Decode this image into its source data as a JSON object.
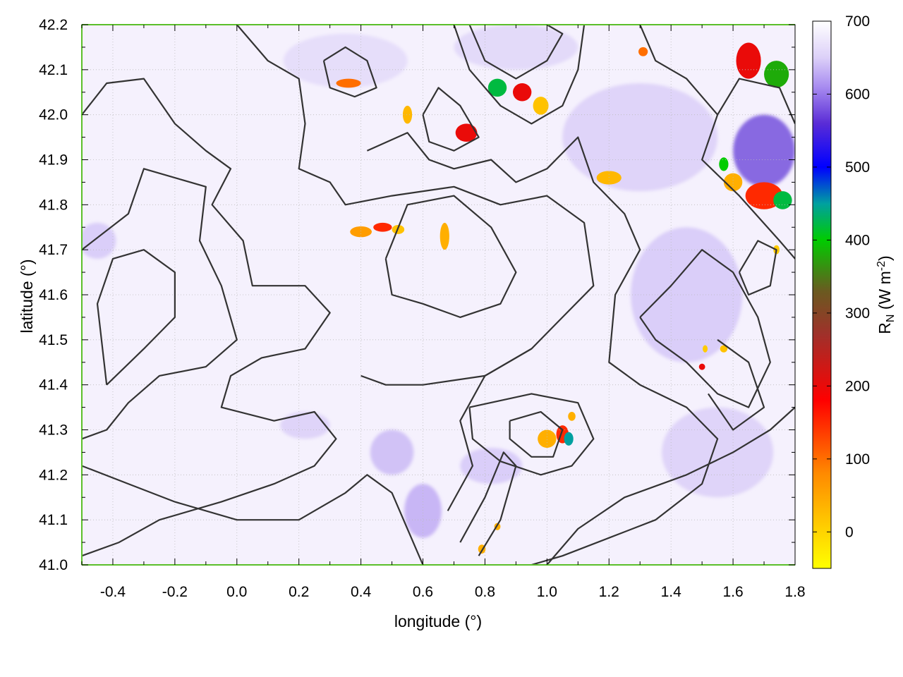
{
  "chart_data": {
    "type": "heatmap",
    "title": "",
    "xlabel": "longitude (°)",
    "ylabel": "latitude (°)",
    "xlim": [
      -0.5,
      1.8
    ],
    "ylim": [
      41.0,
      42.2
    ],
    "xticks": [
      -0.4,
      -0.2,
      0.0,
      0.2,
      0.4,
      0.6,
      0.8,
      1.0,
      1.2,
      1.4,
      1.6,
      1.8
    ],
    "xtick_labels": [
      "-0.4",
      "-0.2",
      "0.0",
      "0.2",
      "0.4",
      "0.6",
      "0.8",
      "1.0",
      "1.2",
      "1.4",
      "1.6",
      "1.8"
    ],
    "yticks": [
      41.0,
      41.1,
      41.2,
      41.3,
      41.4,
      41.5,
      41.6,
      41.7,
      41.8,
      41.9,
      42.0,
      42.1,
      42.2
    ],
    "ytick_labels": [
      "41.0",
      "41.1",
      "41.2",
      "41.3",
      "41.4",
      "41.5",
      "41.6",
      "41.7",
      "41.8",
      "41.9",
      "42.0",
      "42.1",
      "42.2"
    ],
    "grid": true,
    "colorbar": {
      "label_main": "R",
      "label_sub": "N",
      "label_unit_pre": " (W m",
      "label_unit_sup": "-2",
      "label_unit_post": ")",
      "range": [
        -50,
        700
      ],
      "ticks": [
        0,
        100,
        200,
        300,
        400,
        500,
        600,
        700
      ],
      "tick_labels": [
        "0",
        "100",
        "200",
        "300",
        "400",
        "500",
        "600",
        "700"
      ],
      "stops": [
        {
          "value": -50,
          "color": "#ffff00"
        },
        {
          "value": 0,
          "color": "#ffd400"
        },
        {
          "value": 80,
          "color": "#ff8a00"
        },
        {
          "value": 180,
          "color": "#ff0000"
        },
        {
          "value": 270,
          "color": "#a0302a"
        },
        {
          "value": 330,
          "color": "#6a5a20"
        },
        {
          "value": 400,
          "color": "#00cc00"
        },
        {
          "value": 450,
          "color": "#00a0a0"
        },
        {
          "value": 500,
          "color": "#0000ff"
        },
        {
          "value": 560,
          "color": "#5a2cd6"
        },
        {
          "value": 610,
          "color": "#a88cf0"
        },
        {
          "value": 650,
          "color": "#dcd0f8"
        },
        {
          "value": 700,
          "color": "#ffffff"
        }
      ]
    },
    "background_value": 685,
    "features": [
      {
        "lon": -0.45,
        "lat": 41.72,
        "rx": 0.06,
        "ry": 0.04,
        "value": 640
      },
      {
        "lon": 0.22,
        "lat": 41.31,
        "rx": 0.08,
        "ry": 0.03,
        "value": 645
      },
      {
        "lon": 0.5,
        "lat": 41.25,
        "rx": 0.07,
        "ry": 0.05,
        "value": 630
      },
      {
        "lon": 0.6,
        "lat": 41.12,
        "rx": 0.06,
        "ry": 0.06,
        "value": 620
      },
      {
        "lon": 0.82,
        "lat": 41.22,
        "rx": 0.1,
        "ry": 0.04,
        "value": 640
      },
      {
        "lon": 1.45,
        "lat": 41.6,
        "rx": 0.18,
        "ry": 0.15,
        "value": 640
      },
      {
        "lon": 1.3,
        "lat": 41.95,
        "rx": 0.25,
        "ry": 0.12,
        "value": 645
      },
      {
        "lon": 1.7,
        "lat": 41.92,
        "rx": 0.1,
        "ry": 0.08,
        "value": 560
      },
      {
        "lon": 1.55,
        "lat": 41.25,
        "rx": 0.18,
        "ry": 0.1,
        "value": 645
      },
      {
        "lon": 0.35,
        "lat": 42.12,
        "rx": 0.2,
        "ry": 0.06,
        "value": 655
      },
      {
        "lon": 0.9,
        "lat": 42.15,
        "rx": 0.2,
        "ry": 0.05,
        "value": 650
      },
      {
        "lon": 0.4,
        "lat": 41.74,
        "rx": 0.035,
        "ry": 0.012,
        "value": 60
      },
      {
        "lon": 0.47,
        "lat": 41.75,
        "rx": 0.03,
        "ry": 0.01,
        "value": 150
      },
      {
        "lon": 0.52,
        "lat": 41.745,
        "rx": 0.02,
        "ry": 0.01,
        "value": 20
      },
      {
        "lon": 0.67,
        "lat": 41.73,
        "rx": 0.015,
        "ry": 0.03,
        "value": 40
      },
      {
        "lon": 0.36,
        "lat": 42.07,
        "rx": 0.04,
        "ry": 0.01,
        "value": 100
      },
      {
        "lon": 0.74,
        "lat": 41.96,
        "rx": 0.035,
        "ry": 0.02,
        "value": 200
      },
      {
        "lon": 0.55,
        "lat": 42.0,
        "rx": 0.015,
        "ry": 0.02,
        "value": 30
      },
      {
        "lon": 0.84,
        "lat": 42.06,
        "rx": 0.03,
        "ry": 0.02,
        "value": 420
      },
      {
        "lon": 0.92,
        "lat": 42.05,
        "rx": 0.03,
        "ry": 0.02,
        "value": 200
      },
      {
        "lon": 0.98,
        "lat": 42.02,
        "rx": 0.025,
        "ry": 0.02,
        "value": 20
      },
      {
        "lon": 1.2,
        "lat": 41.86,
        "rx": 0.04,
        "ry": 0.015,
        "value": 30
      },
      {
        "lon": 1.31,
        "lat": 42.14,
        "rx": 0.015,
        "ry": 0.01,
        "value": 100
      },
      {
        "lon": 1.65,
        "lat": 42.12,
        "rx": 0.04,
        "ry": 0.04,
        "value": 200
      },
      {
        "lon": 1.74,
        "lat": 42.09,
        "rx": 0.04,
        "ry": 0.03,
        "value": 380
      },
      {
        "lon": 1.7,
        "lat": 41.82,
        "rx": 0.06,
        "ry": 0.03,
        "value": 150
      },
      {
        "lon": 1.6,
        "lat": 41.85,
        "rx": 0.03,
        "ry": 0.02,
        "value": 40
      },
      {
        "lon": 1.76,
        "lat": 41.81,
        "rx": 0.03,
        "ry": 0.02,
        "value": 420
      },
      {
        "lon": 1.57,
        "lat": 41.89,
        "rx": 0.015,
        "ry": 0.015,
        "value": 400
      },
      {
        "lon": 1.0,
        "lat": 41.28,
        "rx": 0.03,
        "ry": 0.02,
        "value": 40
      },
      {
        "lon": 1.05,
        "lat": 41.29,
        "rx": 0.02,
        "ry": 0.02,
        "value": 150
      },
      {
        "lon": 1.07,
        "lat": 41.28,
        "rx": 0.015,
        "ry": 0.015,
        "value": 450
      },
      {
        "lon": 1.08,
        "lat": 41.33,
        "rx": 0.012,
        "ry": 0.01,
        "value": 40
      },
      {
        "lon": 1.57,
        "lat": 41.48,
        "rx": 0.012,
        "ry": 0.008,
        "value": 20
      },
      {
        "lon": 1.51,
        "lat": 41.48,
        "rx": 0.008,
        "ry": 0.008,
        "value": 10
      },
      {
        "lon": 1.5,
        "lat": 41.44,
        "rx": 0.01,
        "ry": 0.007,
        "value": 200
      },
      {
        "lon": 0.79,
        "lat": 41.035,
        "rx": 0.012,
        "ry": 0.01,
        "value": 40
      },
      {
        "lon": 0.84,
        "lat": 41.085,
        "rx": 0.01,
        "ry": 0.008,
        "value": 40
      },
      {
        "lon": 1.74,
        "lat": 41.7,
        "rx": 0.01,
        "ry": 0.01,
        "value": 10
      }
    ],
    "contours": [
      [
        [
          -0.5,
          42.0
        ],
        [
          -0.42,
          42.07
        ],
        [
          -0.3,
          42.08
        ],
        [
          -0.2,
          41.98
        ],
        [
          -0.1,
          41.92
        ],
        [
          -0.02,
          41.88
        ],
        [
          -0.08,
          41.8
        ],
        [
          0.02,
          41.72
        ],
        [
          0.05,
          41.62
        ],
        [
          0.22,
          41.62
        ],
        [
          0.3,
          41.56
        ],
        [
          0.22,
          41.48
        ],
        [
          0.08,
          41.46
        ],
        [
          -0.02,
          41.42
        ],
        [
          -0.05,
          41.35
        ],
        [
          0.12,
          41.32
        ],
        [
          0.25,
          41.34
        ],
        [
          0.32,
          41.28
        ],
        [
          0.25,
          41.22
        ],
        [
          0.12,
          41.18
        ],
        [
          -0.05,
          41.14
        ],
        [
          -0.25,
          41.1
        ],
        [
          -0.38,
          41.05
        ],
        [
          -0.5,
          41.02
        ]
      ],
      [
        [
          -0.5,
          41.7
        ],
        [
          -0.35,
          41.78
        ],
        [
          -0.3,
          41.88
        ],
        [
          -0.1,
          41.84
        ],
        [
          -0.12,
          41.72
        ],
        [
          -0.05,
          41.62
        ],
        [
          0.0,
          41.5
        ],
        [
          -0.1,
          41.44
        ],
        [
          -0.25,
          41.42
        ],
        [
          -0.35,
          41.36
        ],
        [
          -0.42,
          41.3
        ],
        [
          -0.5,
          41.28
        ]
      ],
      [
        [
          -0.42,
          41.4
        ],
        [
          -0.3,
          41.48
        ],
        [
          -0.2,
          41.55
        ],
        [
          -0.2,
          41.65
        ],
        [
          -0.3,
          41.7
        ],
        [
          -0.4,
          41.68
        ],
        [
          -0.45,
          41.58
        ],
        [
          -0.42,
          41.4
        ]
      ],
      [
        [
          -0.5,
          41.22
        ],
        [
          -0.35,
          41.18
        ],
        [
          -0.2,
          41.14
        ],
        [
          0.0,
          41.1
        ],
        [
          0.2,
          41.1
        ],
        [
          0.35,
          41.16
        ],
        [
          0.42,
          41.2
        ],
        [
          0.5,
          41.16
        ],
        [
          0.55,
          41.08
        ],
        [
          0.6,
          41.0
        ]
      ],
      [
        [
          0.0,
          42.2
        ],
        [
          0.1,
          42.12
        ],
        [
          0.2,
          42.08
        ],
        [
          0.22,
          41.98
        ],
        [
          0.2,
          41.88
        ],
        [
          0.3,
          41.85
        ],
        [
          0.35,
          41.8
        ],
        [
          0.5,
          41.82
        ],
        [
          0.7,
          41.84
        ],
        [
          0.85,
          41.8
        ],
        [
          1.0,
          41.82
        ],
        [
          1.12,
          41.76
        ],
        [
          1.15,
          41.62
        ],
        [
          1.05,
          41.55
        ],
        [
          0.95,
          41.48
        ],
        [
          0.8,
          41.42
        ],
        [
          0.6,
          41.4
        ],
        [
          0.48,
          41.4
        ],
        [
          0.4,
          41.42
        ]
      ],
      [
        [
          0.48,
          41.68
        ],
        [
          0.55,
          41.8
        ],
        [
          0.7,
          41.82
        ],
        [
          0.82,
          41.75
        ],
        [
          0.9,
          41.65
        ],
        [
          0.85,
          41.58
        ],
        [
          0.72,
          41.55
        ],
        [
          0.6,
          41.58
        ],
        [
          0.5,
          41.6
        ],
        [
          0.48,
          41.68
        ]
      ],
      [
        [
          0.42,
          41.92
        ],
        [
          0.55,
          41.96
        ],
        [
          0.62,
          41.9
        ],
        [
          0.7,
          41.88
        ],
        [
          0.82,
          41.9
        ],
        [
          0.9,
          41.85
        ],
        [
          1.0,
          41.88
        ],
        [
          1.1,
          41.95
        ],
        [
          1.15,
          41.85
        ],
        [
          1.25,
          41.78
        ],
        [
          1.3,
          41.7
        ],
        [
          1.22,
          41.6
        ],
        [
          1.2,
          41.45
        ],
        [
          1.3,
          41.4
        ],
        [
          1.45,
          41.35
        ],
        [
          1.55,
          41.28
        ],
        [
          1.5,
          41.18
        ],
        [
          1.35,
          41.1
        ],
        [
          1.2,
          41.06
        ],
        [
          1.05,
          41.02
        ],
        [
          0.95,
          41.0
        ]
      ],
      [
        [
          0.75,
          41.35
        ],
        [
          0.95,
          41.38
        ],
        [
          1.1,
          41.36
        ],
        [
          1.15,
          41.28
        ],
        [
          1.08,
          41.22
        ],
        [
          0.98,
          41.2
        ],
        [
          0.85,
          41.23
        ],
        [
          0.76,
          41.28
        ],
        [
          0.75,
          41.35
        ]
      ],
      [
        [
          0.88,
          41.32
        ],
        [
          0.98,
          41.34
        ],
        [
          1.05,
          41.3
        ],
        [
          1.02,
          41.24
        ],
        [
          0.95,
          41.24
        ],
        [
          0.88,
          41.28
        ],
        [
          0.88,
          41.32
        ]
      ],
      [
        [
          0.68,
          41.12
        ],
        [
          0.76,
          41.22
        ],
        [
          0.72,
          41.32
        ],
        [
          0.8,
          41.42
        ],
        [
          0.95,
          41.48
        ]
      ],
      [
        [
          0.72,
          41.05
        ],
        [
          0.8,
          41.15
        ],
        [
          0.86,
          41.25
        ],
        [
          0.9,
          41.22
        ],
        [
          0.85,
          41.1
        ],
        [
          0.78,
          41.02
        ]
      ],
      [
        [
          1.0,
          41.0
        ],
        [
          1.1,
          41.08
        ],
        [
          1.25,
          41.15
        ],
        [
          1.45,
          41.2
        ],
        [
          1.6,
          41.25
        ],
        [
          1.72,
          41.3
        ],
        [
          1.8,
          41.35
        ]
      ],
      [
        [
          1.3,
          42.2
        ],
        [
          1.35,
          42.12
        ],
        [
          1.45,
          42.08
        ],
        [
          1.55,
          42.0
        ],
        [
          1.5,
          41.9
        ],
        [
          1.62,
          41.82
        ],
        [
          1.75,
          41.72
        ],
        [
          1.8,
          41.68
        ]
      ],
      [
        [
          1.3,
          41.55
        ],
        [
          1.4,
          41.62
        ],
        [
          1.5,
          41.7
        ],
        [
          1.6,
          41.65
        ],
        [
          1.68,
          41.55
        ],
        [
          1.72,
          41.45
        ],
        [
          1.65,
          41.35
        ],
        [
          1.55,
          41.38
        ],
        [
          1.45,
          41.45
        ],
        [
          1.35,
          41.5
        ],
        [
          1.3,
          41.55
        ]
      ],
      [
        [
          1.55,
          42.0
        ],
        [
          1.62,
          42.08
        ],
        [
          1.75,
          42.06
        ],
        [
          1.8,
          41.98
        ]
      ],
      [
        [
          0.75,
          42.2
        ],
        [
          0.8,
          42.12
        ],
        [
          0.9,
          42.08
        ],
        [
          1.0,
          42.12
        ],
        [
          1.05,
          42.18
        ],
        [
          1.0,
          42.2
        ]
      ],
      [
        [
          0.7,
          42.2
        ],
        [
          0.75,
          42.1
        ],
        [
          0.85,
          42.02
        ],
        [
          0.95,
          41.98
        ],
        [
          1.05,
          42.02
        ],
        [
          1.1,
          42.1
        ],
        [
          1.12,
          42.2
        ]
      ],
      [
        [
          0.28,
          42.12
        ],
        [
          0.35,
          42.15
        ],
        [
          0.42,
          42.12
        ],
        [
          0.45,
          42.06
        ],
        [
          0.38,
          42.04
        ],
        [
          0.3,
          42.06
        ],
        [
          0.28,
          42.12
        ]
      ],
      [
        [
          0.6,
          42.0
        ],
        [
          0.65,
          42.06
        ],
        [
          0.72,
          42.02
        ],
        [
          0.78,
          41.95
        ],
        [
          0.7,
          41.92
        ],
        [
          0.62,
          41.94
        ],
        [
          0.6,
          42.0
        ]
      ],
      [
        [
          1.55,
          41.5
        ],
        [
          1.65,
          41.45
        ],
        [
          1.7,
          41.35
        ],
        [
          1.6,
          41.3
        ],
        [
          1.52,
          41.38
        ]
      ],
      [
        [
          1.62,
          41.65
        ],
        [
          1.68,
          41.72
        ],
        [
          1.74,
          41.7
        ],
        [
          1.72,
          41.62
        ],
        [
          1.65,
          41.6
        ],
        [
          1.62,
          41.65
        ]
      ]
    ]
  }
}
